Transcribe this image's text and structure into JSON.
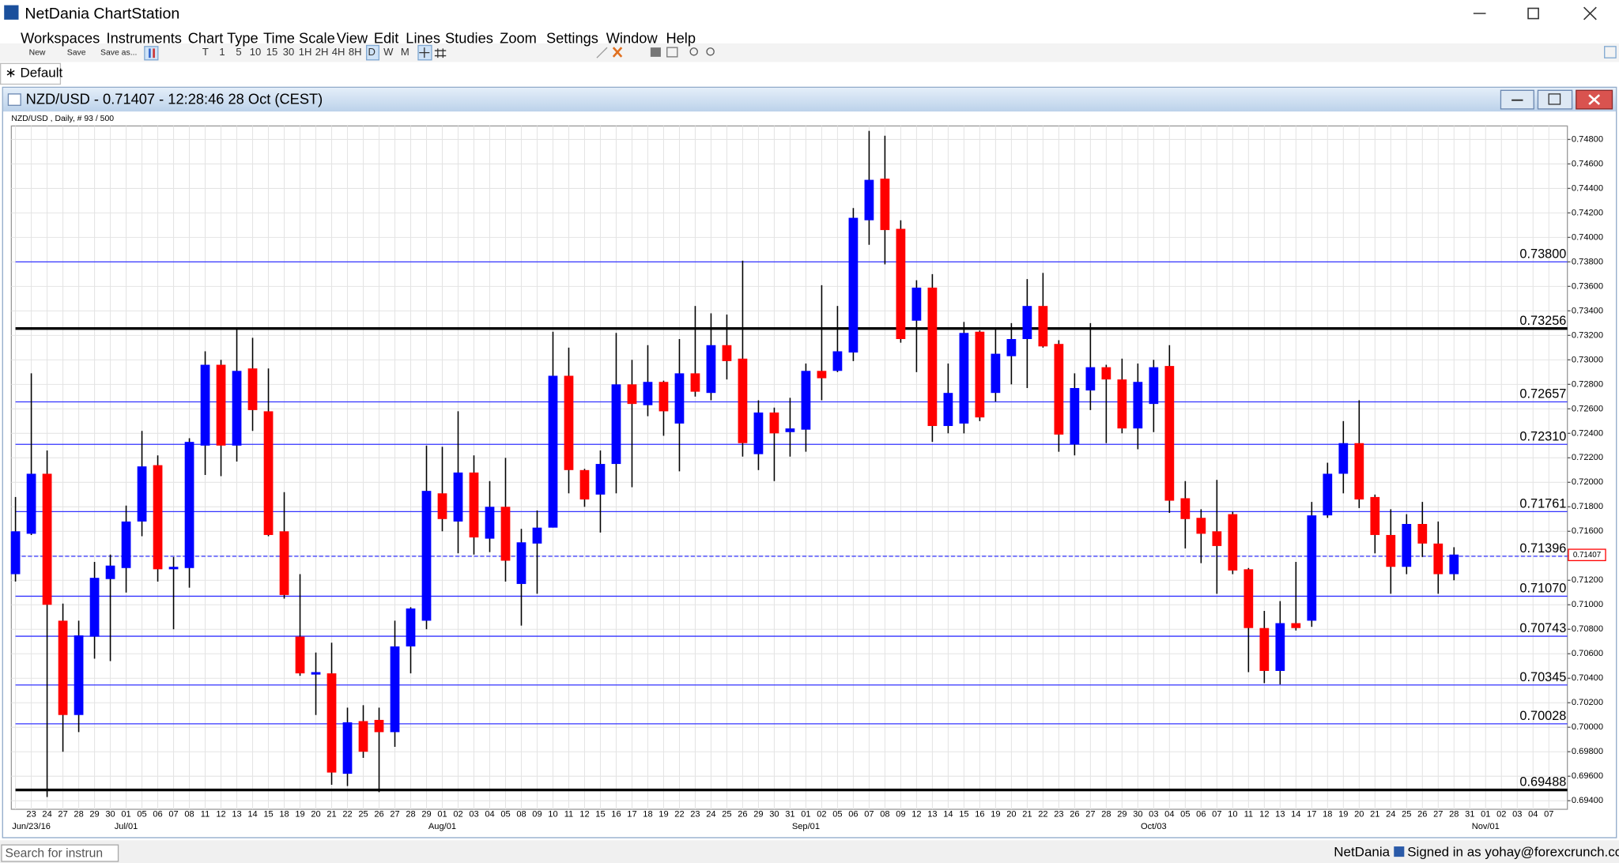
{
  "window": {
    "title": "NetDania ChartStation",
    "menu": [
      "Workspaces",
      "Instruments",
      "Chart Type",
      "Time Scale",
      "View",
      "Edit",
      "Lines",
      "Studies",
      "Zoom",
      "Settings",
      "Window",
      "Help"
    ],
    "toolbar": [
      "New",
      "Save",
      "Save as..."
    ],
    "timescales": [
      "T",
      "1",
      "5",
      "10",
      "15",
      "30",
      "1H",
      "2H",
      "4H",
      "8H",
      "D",
      "W",
      "M"
    ]
  },
  "tab": "∗ Default",
  "chart_window": {
    "title": "NZD/USD - 0.71407 - 12:28:46  28 Oct (CEST)"
  },
  "chart_data": {
    "type": "candlestick",
    "subtitle": "NZD/USD , Daily, # 93 / 500",
    "categories": [
      null,
      "23",
      "24",
      "27",
      "28",
      "29",
      "30",
      "01",
      "05",
      "06",
      "07",
      "08",
      "11",
      "12",
      "13",
      "14",
      "15",
      "18",
      "19",
      "20",
      "21",
      "22",
      "25",
      "26",
      "27",
      "28",
      "29",
      "01",
      "02",
      "03",
      "04",
      "05",
      "08",
      "09",
      "10",
      "11",
      "12",
      "15",
      "16",
      "17",
      "18",
      "19",
      "22",
      "23",
      "24",
      "25",
      "26",
      "29",
      "30",
      "31",
      "01",
      "02",
      "05",
      "06",
      "07",
      "08",
      "09",
      "12",
      "13",
      "14",
      "15",
      "16",
      "19",
      "20",
      "21",
      "22",
      "23",
      "26",
      "27",
      "28",
      "29",
      "30",
      "03",
      "04",
      "05",
      "06",
      "07",
      "10",
      "11",
      "12",
      "13",
      "14",
      "17",
      "18",
      "19",
      "20",
      "21",
      "24",
      "25",
      "26",
      "27",
      "28",
      "31",
      "01",
      "02",
      "03",
      "04",
      "07"
    ],
    "period_labels": [
      {
        "label": "Jun/23/16",
        "index": 1
      },
      {
        "label": "Jul/01",
        "index": 7
      },
      {
        "label": "Aug/01",
        "index": 27
      },
      {
        "label": "Sep/01",
        "index": 50
      },
      {
        "label": "Oct/03",
        "index": 72
      },
      {
        "label": "Nov/01",
        "index": 93
      }
    ],
    "open": [
      0.7125,
      0.7158,
      0.7207,
      0.7087,
      0.701,
      0.7074,
      0.7121,
      0.713,
      0.7168,
      0.7214,
      0.7129,
      0.713,
      0.723,
      0.7296,
      0.723,
      0.7293,
      0.7258,
      0.716,
      0.7074,
      0.7043,
      0.7044,
      0.6962,
      0.7005,
      0.7006,
      0.6996,
      0.7066,
      0.7087,
      0.7191,
      0.7168,
      0.7208,
      0.7154,
      0.718,
      0.7117,
      0.715,
      0.7163,
      0.7287,
      0.721,
      0.719,
      0.7215,
      0.728,
      0.7263,
      0.7282,
      0.7248,
      0.7289,
      0.7273,
      0.7312,
      0.7301,
      0.7223,
      0.7257,
      0.7241,
      0.7243,
      0.7291,
      0.7291,
      0.7306,
      0.7414,
      0.7448,
      0.7407,
      0.7332,
      0.7359,
      0.7246,
      0.7248,
      0.7323,
      0.7273,
      0.7303,
      0.7317,
      0.7344,
      0.7313,
      0.7231,
      0.7275,
      0.7294,
      0.7284,
      0.7244,
      0.7264,
      0.7295,
      0.7187,
      0.7171,
      0.716,
      0.7174,
      0.7129,
      0.7081,
      0.7046,
      0.7085,
      0.7087,
      0.7173,
      0.7207,
      0.7232,
      0.7188,
      0.7157,
      0.7131,
      0.7166,
      0.715,
      0.7125,
      null,
      null,
      null,
      null,
      null,
      null
    ],
    "high": [
      0.7188,
      0.7289,
      0.7226,
      0.7101,
      0.7087,
      0.7135,
      0.7141,
      0.7181,
      0.7242,
      0.7222,
      0.7139,
      0.7236,
      0.7307,
      0.73,
      0.7326,
      0.7318,
      0.7293,
      0.7192,
      0.7125,
      0.7061,
      0.7069,
      0.7016,
      0.7018,
      0.7016,
      0.7087,
      0.7098,
      0.723,
      0.7229,
      0.7258,
      0.7222,
      0.7201,
      0.722,
      0.7162,
      0.7177,
      0.7323,
      0.731,
      0.7211,
      0.7226,
      0.7322,
      0.73,
      0.7312,
      0.7283,
      0.7317,
      0.7344,
      0.7338,
      0.7337,
      0.7381,
      0.7267,
      0.7261,
      0.7269,
      0.7297,
      0.7361,
      0.7344,
      0.7424,
      0.7487,
      0.7483,
      0.7414,
      0.7365,
      0.737,
      0.7297,
      0.7331,
      0.7324,
      0.7325,
      0.733,
      0.7366,
      0.7371,
      0.7316,
      0.7289,
      0.733,
      0.7296,
      0.7301,
      0.7297,
      0.73,
      0.7312,
      0.7201,
      0.7178,
      0.7202,
      0.7176,
      0.713,
      0.7095,
      0.7103,
      0.7135,
      0.7184,
      0.7216,
      0.725,
      0.7267,
      0.719,
      0.7178,
      0.7174,
      0.7184,
      0.7168,
      0.7147,
      null,
      null,
      null,
      null,
      null,
      null
    ],
    "low": [
      0.7119,
      0.7157,
      0.6943,
      0.698,
      0.6996,
      0.7056,
      0.7054,
      0.711,
      0.7156,
      0.7119,
      0.708,
      0.7114,
      0.7206,
      0.7205,
      0.7217,
      0.7242,
      0.7156,
      0.7105,
      0.7042,
      0.701,
      0.6953,
      0.6952,
      0.6975,
      0.6947,
      0.6984,
      0.7044,
      0.708,
      0.716,
      0.7142,
      0.7141,
      0.7143,
      0.7119,
      0.7083,
      0.7109,
      0.7163,
      0.7191,
      0.718,
      0.7159,
      0.7191,
      0.7196,
      0.7254,
      0.7238,
      0.7209,
      0.727,
      0.7267,
      0.7284,
      0.7221,
      0.721,
      0.7201,
      0.7221,
      0.7225,
      0.7267,
      0.729,
      0.7299,
      0.7394,
      0.7378,
      0.7314,
      0.729,
      0.7233,
      0.724,
      0.724,
      0.725,
      0.7266,
      0.728,
      0.7277,
      0.731,
      0.7225,
      0.7222,
      0.7259,
      0.7232,
      0.724,
      0.7227,
      0.7241,
      0.7175,
      0.7146,
      0.7134,
      0.7109,
      0.7125,
      0.7045,
      0.7036,
      0.7035,
      0.7079,
      0.7082,
      0.7171,
      0.7191,
      0.7179,
      0.7142,
      0.7109,
      0.7125,
      0.7139,
      0.7109,
      0.712,
      null,
      null,
      null,
      null,
      null,
      null
    ],
    "close": [
      0.716,
      0.7207,
      0.71,
      0.701,
      0.7075,
      0.7122,
      0.7132,
      0.7168,
      0.7213,
      0.7129,
      0.7131,
      0.7233,
      0.7296,
      0.723,
      0.7291,
      0.7259,
      0.7157,
      0.7108,
      0.7044,
      0.7045,
      0.6963,
      0.7004,
      0.698,
      0.6996,
      0.7066,
      0.7097,
      0.7193,
      0.717,
      0.7208,
      0.7155,
      0.718,
      0.7136,
      0.7151,
      0.7163,
      0.7287,
      0.721,
      0.7186,
      0.7215,
      0.728,
      0.7264,
      0.7282,
      0.7258,
      0.7289,
      0.7274,
      0.7312,
      0.7299,
      0.7232,
      0.7257,
      0.724,
      0.7244,
      0.7291,
      0.7285,
      0.7307,
      0.7416,
      0.7447,
      0.7406,
      0.7317,
      0.7359,
      0.7246,
      0.7273,
      0.7322,
      0.7253,
      0.7305,
      0.7317,
      0.7344,
      0.7311,
      0.7239,
      0.7277,
      0.7294,
      0.7284,
      0.7244,
      0.7282,
      0.7294,
      0.7185,
      0.717,
      0.7158,
      0.7148,
      0.7128,
      0.7081,
      0.7046,
      0.7085,
      0.7081,
      0.7173,
      0.7207,
      0.7232,
      0.7186,
      0.7157,
      0.7131,
      0.7166,
      0.715,
      0.7125,
      0.7141,
      null,
      null,
      null,
      null,
      null,
      null
    ],
    "up_color": "#0000ff",
    "down_color": "#ff0000",
    "wick_color": "#000000",
    "ylim": [
      0.6933,
      0.7491
    ],
    "yticks": [
      {
        "value": 0.694,
        "label": "0.69400"
      },
      {
        "value": 0.696,
        "label": "0.69600"
      },
      {
        "value": 0.698,
        "label": "0.69800"
      },
      {
        "value": 0.7,
        "label": "0.70000"
      },
      {
        "value": 0.702,
        "label": "0.70200"
      },
      {
        "value": 0.704,
        "label": "0.70400"
      },
      {
        "value": 0.706,
        "label": "0.70600"
      },
      {
        "value": 0.708,
        "label": "0.70800"
      },
      {
        "value": 0.71,
        "label": "0.71000"
      },
      {
        "value": 0.712,
        "label": "0.71200"
      },
      {
        "value": 0.714,
        "label": "0.71400"
      },
      {
        "value": 0.716,
        "label": "0.71600"
      },
      {
        "value": 0.718,
        "label": "0.71800"
      },
      {
        "value": 0.72,
        "label": "0.72000"
      },
      {
        "value": 0.722,
        "label": "0.72200"
      },
      {
        "value": 0.724,
        "label": "0.72400"
      },
      {
        "value": 0.726,
        "label": "0.72600"
      },
      {
        "value": 0.728,
        "label": "0.72800"
      },
      {
        "value": 0.73,
        "label": "0.73000"
      },
      {
        "value": 0.732,
        "label": "0.73200"
      },
      {
        "value": 0.734,
        "label": "0.73400"
      },
      {
        "value": 0.736,
        "label": "0.73600"
      },
      {
        "value": 0.738,
        "label": "0.73800"
      },
      {
        "value": 0.74,
        "label": "0.74000"
      },
      {
        "value": 0.742,
        "label": "0.74200"
      },
      {
        "value": 0.744,
        "label": "0.74400"
      },
      {
        "value": 0.746,
        "label": "0.74600"
      },
      {
        "value": 0.748,
        "label": "0.74800"
      }
    ],
    "grid": true,
    "levels": [
      {
        "value": 0.738,
        "label": "0.73800",
        "color": "#3333ff"
      },
      {
        "value": 0.73256,
        "label": "0.73256",
        "color": "#000000"
      },
      {
        "value": 0.72657,
        "label": "0.72657",
        "color": "#3333ff"
      },
      {
        "value": 0.7231,
        "label": "0.72310",
        "color": "#3333ff"
      },
      {
        "value": 0.71761,
        "label": "0.71761",
        "color": "#3333ff"
      },
      {
        "value": 0.71396,
        "label": "0.71396",
        "color": "#3333ff",
        "dashed": true
      },
      {
        "value": 0.7107,
        "label": "0.71070",
        "color": "#3333ff"
      },
      {
        "value": 0.70743,
        "label": "0.70743",
        "color": "#3333ff"
      },
      {
        "value": 0.70345,
        "label": "0.70345",
        "color": "#3333ff"
      },
      {
        "value": 0.70028,
        "label": "0.70028",
        "color": "#3333ff"
      },
      {
        "value": 0.69488,
        "label": "0.69488",
        "color": "#000000"
      }
    ],
    "last_price": {
      "value": 0.71407,
      "label": "0.71407"
    }
  },
  "status_bar": {
    "search_placeholder": "Search for instrun",
    "brand": "NetDania",
    "signed_in": "Signed in as yohay@forexcrunch.com"
  }
}
